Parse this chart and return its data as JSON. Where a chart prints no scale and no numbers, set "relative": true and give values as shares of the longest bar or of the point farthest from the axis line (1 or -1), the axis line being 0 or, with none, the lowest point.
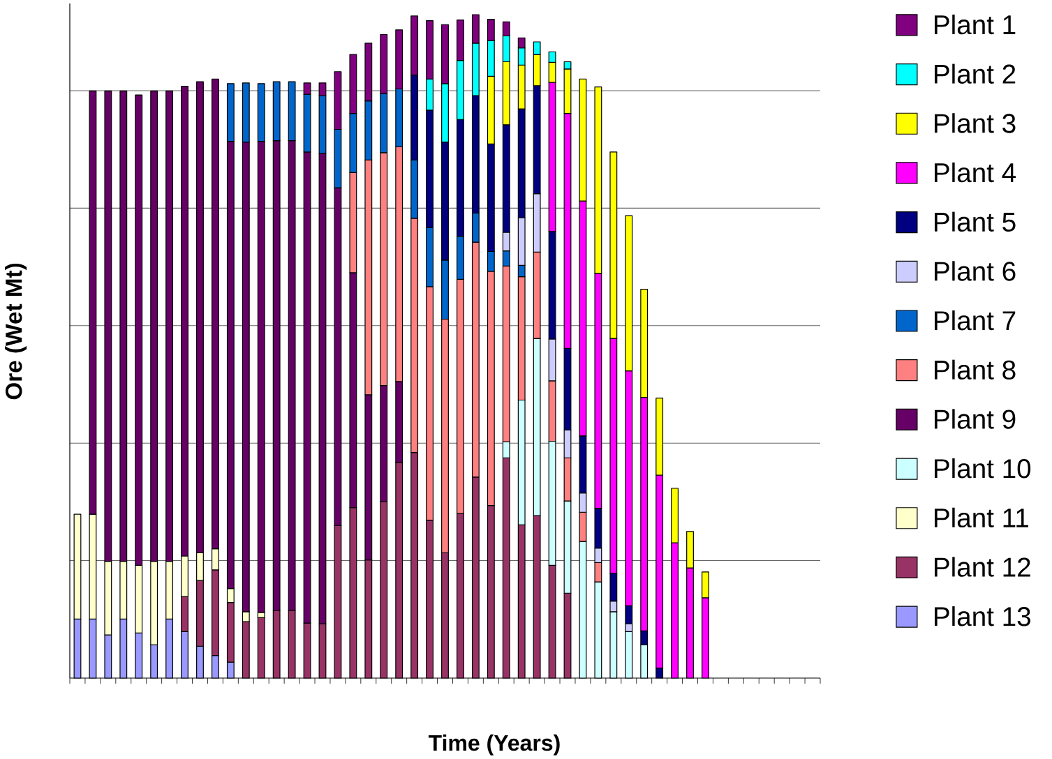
{
  "chart_data": {
    "type": "bar",
    "stacked": true,
    "relative": true,
    "xlabel": "Time (Years)",
    "ylabel": "Ore (Wet Mt)",
    "grid": "y",
    "legend": "right",
    "categories": [
      null,
      null,
      null,
      null,
      null,
      null,
      null,
      null,
      null,
      null,
      null,
      null,
      null,
      null,
      null,
      null,
      null,
      null,
      null,
      null,
      null,
      null,
      null,
      null,
      null,
      null,
      null,
      null,
      null,
      null,
      null,
      null,
      null,
      null,
      null,
      null,
      null,
      null,
      null,
      null,
      null,
      null
    ],
    "series": [
      {
        "name": "Plant 13",
        "color": "#9999ff",
        "values": [
          0.089,
          0.089,
          0.065,
          0.089,
          0.068,
          0.05,
          0.089,
          0.07,
          0.048,
          0.034,
          0.024,
          null,
          null,
          null,
          null,
          null,
          null,
          null,
          null,
          null,
          null,
          null,
          null,
          null,
          null,
          null,
          null,
          null,
          null,
          null,
          null,
          null,
          null,
          null,
          null,
          null,
          null,
          null,
          null,
          null,
          null,
          null
        ]
      },
      {
        "name": "Plant 12",
        "color": "#993366",
        "values": [
          null,
          null,
          null,
          null,
          null,
          null,
          null,
          0.053,
          0.099,
          0.129,
          0.09,
          0.085,
          0.091,
          0.102,
          0.102,
          0.083,
          0.082,
          0.23,
          0.257,
          0.178,
          0.266,
          0.325,
          0.34,
          0.238,
          0.189,
          0.248,
          0.303,
          0.26,
          0.332,
          0.231,
          0.245,
          0.17,
          0.128,
          null,
          null,
          null,
          null,
          null,
          null,
          null,
          null,
          null
        ]
      },
      {
        "name": "Plant 11",
        "color": "#ffffcc",
        "values": [
          0.158,
          0.158,
          0.111,
          0.087,
          0.102,
          0.126,
          0.087,
          0.061,
          0.042,
          0.032,
          0.021,
          0.015,
          0.008,
          null,
          null,
          null,
          null,
          null,
          null,
          null,
          null,
          null,
          null,
          null,
          null,
          null,
          null,
          null,
          null,
          null,
          null,
          null,
          null,
          null,
          null,
          null,
          null,
          null,
          null,
          null,
          null,
          null
        ]
      },
      {
        "name": "Plant 10",
        "color": "#ccffff",
        "values": [
          null,
          null,
          null,
          null,
          null,
          null,
          null,
          null,
          null,
          null,
          null,
          null,
          null,
          null,
          null,
          null,
          null,
          null,
          null,
          null,
          null,
          null,
          null,
          null,
          null,
          null,
          null,
          null,
          0.024,
          0.188,
          0.267,
          0.187,
          0.139,
          0.206,
          0.145,
          0.1,
          0.07,
          0.05,
          null,
          null,
          null,
          null
        ]
      },
      {
        "name": "Plant 9",
        "color": "#660066",
        "values": [
          null,
          0.638,
          0.709,
          0.709,
          0.709,
          0.709,
          0.709,
          0.708,
          0.71,
          0.708,
          0.674,
          0.708,
          0.71,
          0.708,
          0.708,
          0.71,
          0.709,
          0.509,
          0.354,
          0.249,
          0.175,
          0.122,
          null,
          null,
          null,
          null,
          null,
          null,
          null,
          null,
          null,
          null,
          null,
          null,
          null,
          null,
          null,
          null,
          null,
          null,
          null,
          null
        ]
      },
      {
        "name": "Plant 8",
        "color": "#ff8080",
        "values": [
          null,
          null,
          null,
          null,
          null,
          null,
          null,
          null,
          null,
          null,
          null,
          null,
          null,
          null,
          null,
          null,
          null,
          null,
          0.151,
          0.354,
          0.351,
          0.354,
          0.353,
          0.352,
          0.352,
          0.353,
          0.354,
          0.353,
          0.265,
          0.186,
          0.13,
          0.091,
          0.065,
          0.044,
          0.029,
          null,
          null,
          null,
          null,
          null,
          null,
          null
        ]
      },
      {
        "name": "Plant 7",
        "color": "#0066cc",
        "values": [
          null,
          null,
          null,
          null,
          null,
          null,
          null,
          null,
          null,
          null,
          0.087,
          0.089,
          0.087,
          0.089,
          0.089,
          0.087,
          0.087,
          0.088,
          0.089,
          0.089,
          0.089,
          0.087,
          0.088,
          0.089,
          0.089,
          0.065,
          0.044,
          0.03,
          0.023,
          0.017,
          null,
          null,
          null,
          null,
          null,
          null,
          null,
          null,
          null,
          null,
          null,
          null
        ]
      },
      {
        "name": "Plant 6",
        "color": "#ccccff",
        "values": [
          null,
          null,
          null,
          null,
          null,
          null,
          null,
          null,
          null,
          null,
          null,
          null,
          null,
          null,
          null,
          null,
          null,
          null,
          null,
          null,
          null,
          null,
          null,
          null,
          null,
          null,
          null,
          null,
          0.028,
          0.072,
          0.088,
          0.063,
          0.042,
          0.029,
          0.022,
          0.016,
          0.012,
          null,
          null,
          null,
          null,
          null
        ]
      },
      {
        "name": "Plant 5",
        "color": "#000080",
        "values": [
          null,
          null,
          null,
          null,
          null,
          null,
          null,
          null,
          null,
          null,
          null,
          null,
          null,
          null,
          null,
          null,
          null,
          null,
          null,
          null,
          null,
          null,
          0.128,
          0.177,
          0.178,
          0.176,
          0.177,
          0.162,
          0.162,
          0.164,
          0.163,
          0.162,
          0.123,
          0.086,
          0.06,
          0.042,
          0.027,
          0.021,
          0.015,
          null,
          null,
          null
        ]
      },
      {
        "name": "Plant 4",
        "color": "#ff00ff",
        "values": [
          null,
          null,
          null,
          null,
          null,
          null,
          null,
          null,
          null,
          null,
          null,
          null,
          null,
          null,
          null,
          null,
          null,
          null,
          null,
          null,
          null,
          null,
          null,
          null,
          null,
          null,
          null,
          null,
          null,
          null,
          null,
          0.225,
          0.354,
          0.354,
          0.354,
          0.354,
          0.354,
          0.352,
          0.291,
          0.204,
          0.166,
          0.121
        ]
      },
      {
        "name": "Plant 3",
        "color": "#ffff00",
        "values": [
          null,
          null,
          null,
          null,
          null,
          null,
          null,
          null,
          null,
          null,
          null,
          null,
          null,
          null,
          null,
          null,
          null,
          null,
          null,
          null,
          null,
          null,
          null,
          null,
          null,
          null,
          null,
          0.102,
          0.095,
          0.066,
          0.047,
          0.03,
          0.067,
          0.184,
          0.281,
          0.281,
          0.234,
          0.163,
          0.116,
          0.082,
          0.055,
          0.039
        ]
      },
      {
        "name": "Plant 2",
        "color": "#00ffff",
        "values": [
          null,
          null,
          null,
          null,
          null,
          null,
          null,
          null,
          null,
          null,
          null,
          null,
          null,
          null,
          null,
          null,
          null,
          null,
          null,
          null,
          null,
          null,
          null,
          0.047,
          0.088,
          0.089,
          0.079,
          0.054,
          0.039,
          0.026,
          0.019,
          0.016,
          0.011,
          null,
          null,
          null,
          null,
          null,
          null,
          null,
          null,
          null
        ]
      },
      {
        "name": "Plant 1",
        "color": "#800080",
        "values": [
          null,
          null,
          null,
          null,
          null,
          null,
          null,
          null,
          null,
          null,
          null,
          null,
          null,
          null,
          null,
          0.017,
          0.019,
          0.087,
          0.089,
          0.087,
          0.089,
          0.089,
          0.089,
          0.088,
          0.089,
          0.061,
          0.043,
          0.032,
          0.021,
          0.015,
          null,
          null,
          null,
          null,
          null,
          null,
          null,
          null,
          null,
          null,
          null,
          null
        ]
      }
    ]
  }
}
